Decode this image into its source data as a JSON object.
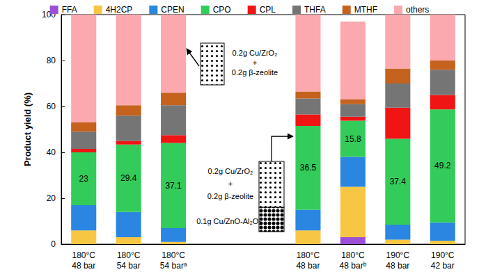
{
  "chart_data": {
    "type": "bar",
    "stacked": true,
    "grid": false,
    "legend": "top",
    "y_label": "Product yield (%)",
    "ylim": [
      0,
      100
    ],
    "yticks": [
      0,
      20,
      40,
      60,
      80,
      100
    ],
    "categories": [
      "180°C\n48 bar",
      "180°C\n54 bar",
      "180°C\n54 barᵃ",
      null,
      null,
      "180°C\n48 bar",
      "180°C\n48 barᵇ",
      "190°C\n48 bar",
      "190°C\n42 bar"
    ],
    "series": [
      {
        "name": "FFA",
        "color": "#9b4fd6",
        "values": [
          0,
          0,
          0,
          null,
          null,
          0,
          3,
          0,
          0
        ]
      },
      {
        "name": "4H2CP",
        "color": "#f7c744",
        "values": [
          6,
          3,
          1,
          null,
          null,
          6,
          22,
          2,
          1.5
        ]
      },
      {
        "name": "CPEN",
        "color": "#2a86e0",
        "values": [
          11,
          11,
          6,
          null,
          null,
          9,
          13,
          6.5,
          8
        ]
      },
      {
        "name": "CPO",
        "color": "#33cc5a",
        "data_labels": true,
        "values": [
          23,
          29.4,
          37.1,
          null,
          null,
          36.5,
          15.8,
          37.4,
          49.2
        ]
      },
      {
        "name": "CPL",
        "color": "#f01414",
        "values": [
          1.5,
          1.6,
          3.4,
          null,
          null,
          5,
          1.7,
          13.6,
          6.3
        ]
      },
      {
        "name": "THFA",
        "color": "#757575",
        "values": [
          7.5,
          11,
          13,
          null,
          null,
          7,
          5.5,
          10.5,
          11
        ]
      },
      {
        "name": "MTHF",
        "color": "#c4621e",
        "values": [
          4,
          4.5,
          5.5,
          null,
          null,
          3,
          2,
          6.5,
          4
        ]
      },
      {
        "name": "others",
        "color": "#fba8ae",
        "values": [
          47,
          39.5,
          34,
          null,
          null,
          33.5,
          34,
          23.5,
          20
        ]
      }
    ],
    "annotations": [
      "0.2g Cu/ZrO₂\n+\n0.2g β-zeolite",
      "0.2g Cu/ZrO₂\n+\n0.2g β-zeolite",
      "0.1g Cu/ZnO-Al₂O₃"
    ]
  }
}
